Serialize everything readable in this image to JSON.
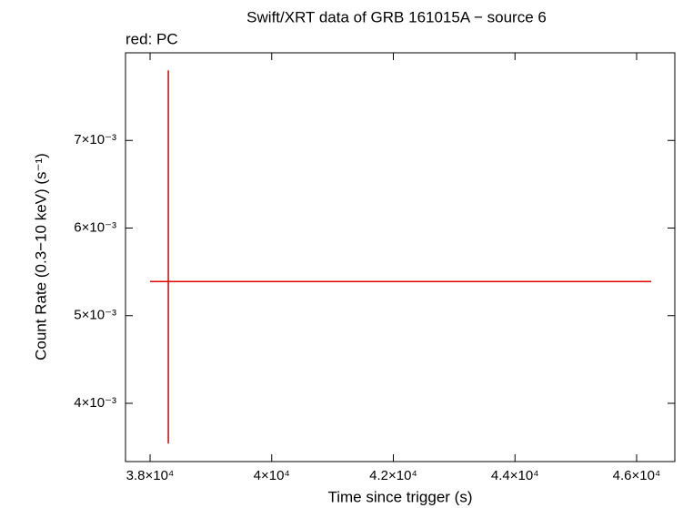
{
  "chart_data": {
    "type": "errorbar",
    "title": "Swift/XRT data of GRB 161015A − source 6",
    "subtitle": "red: PC",
    "x_label": "Time since trigger (s)",
    "y_label": "Count Rate (0.3−10 keV) (s⁻¹)",
    "x": [
      38300
    ],
    "series": [
      {
        "color": "#e00000",
        "values": [
          0.00539
        ],
        "xerr": [
          [
            300,
            7940
          ]
        ],
        "yerr": [
          [
            0.00185,
            0.00241
          ]
        ]
      }
    ],
    "xlim": [
      37596,
      46628
    ],
    "xticks": [
      {
        "value": 38000,
        "label": "3.8×10⁴"
      },
      {
        "value": 40000,
        "label": "4×10⁴"
      },
      {
        "value": 42000,
        "label": "4.2×10⁴"
      },
      {
        "value": 44000,
        "label": "4.4×10⁴"
      },
      {
        "value": 46000,
        "label": "4.6×10⁴"
      }
    ],
    "ylim": [
      0.003335,
      0.008
    ],
    "yticks": [
      {
        "value": 0.004,
        "label": "4×10⁻³"
      },
      {
        "value": 0.005,
        "label": "5×10⁻³"
      },
      {
        "value": 0.006,
        "label": "6×10⁻³"
      },
      {
        "value": 0.007,
        "label": "7×10⁻³"
      }
    ]
  }
}
